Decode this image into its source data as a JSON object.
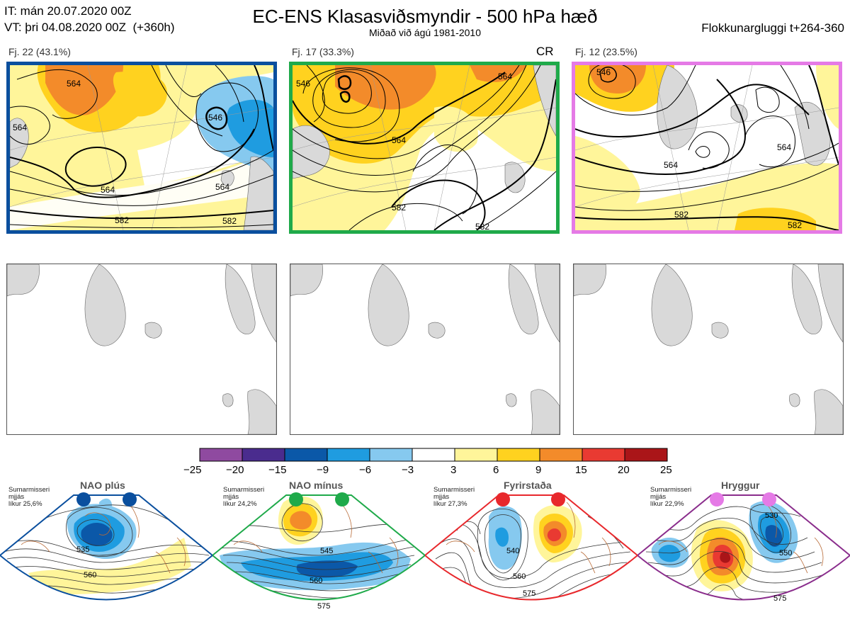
{
  "header": {
    "init_line": "IT: mán 20.07.2020 00Z",
    "valid_line": "VT: þri 04.08.2020 00Z  (+360h)",
    "title": "EC-ENS Klasasviðsmyndir - 500 hPa hæð",
    "subtitle": "Miðað við ágú 1981-2010",
    "window": "Flokkunargluggi t+264-360"
  },
  "clusters": [
    {
      "label": "Fj. 22 (43.1%)",
      "border_color": "#0a4f9e",
      "contours": [
        "564",
        "564",
        "564",
        "546",
        "564",
        "582",
        "582"
      ],
      "tag": ""
    },
    {
      "label": "Fj. 17 (33.3%)",
      "border_color": "#1faa4a",
      "contours": [
        "546",
        "564",
        "564",
        "582",
        "582"
      ],
      "tag": "CR"
    },
    {
      "label": "Fj. 12 (23.5%)",
      "border_color": "#e57ae6",
      "contours": [
        "546",
        "564",
        "564",
        "582",
        "582"
      ],
      "tag": ""
    }
  ],
  "colorbar": {
    "ticks": [
      "−25",
      "−20",
      "−15",
      "−9",
      "−6",
      "−3",
      "3",
      "6",
      "9",
      "15",
      "20",
      "25"
    ],
    "colors": [
      "#8f4aa0",
      "#4a2c8e",
      "#0b58a8",
      "#1f9ce0",
      "#86c9ef",
      "#ffffff",
      "#fff59a",
      "#ffd21f",
      "#f38b2a",
      "#e93a32",
      "#aa1518"
    ]
  },
  "regimes": [
    {
      "name": "NAO plús",
      "note_line1": "Sumarmisseri",
      "note_line2": "mjjás",
      "note_line3": "líkur 25,6%",
      "dot_color": "#0a4f9e",
      "frame_color": "#0a4f9e",
      "contours": [
        "535",
        "560"
      ]
    },
    {
      "name": "NAO mínus",
      "note_line1": "Sumarmisseri",
      "note_line2": "mjjás",
      "note_line3": "líkur 24,2%",
      "dot_color": "#1faa4a",
      "frame_color": "#1faa4a",
      "contours": [
        "545",
        "560",
        "575"
      ]
    },
    {
      "name": "Fyrirstaða",
      "note_line1": "Sumarmisseri",
      "note_line2": "mjjás",
      "note_line3": "líkur 27,3%",
      "dot_color": "#e8282c",
      "frame_color": "#e8282c",
      "contours": [
        "540",
        "560",
        "575"
      ]
    },
    {
      "name": "Hryggur",
      "note_line1": "Sumarmisseri",
      "note_line2": "mjjás",
      "note_line3": "líkur 22,9%",
      "dot_color": "#e57ae6",
      "frame_color": "#8a2d8c",
      "contours": [
        "530",
        "550",
        "575"
      ]
    }
  ]
}
